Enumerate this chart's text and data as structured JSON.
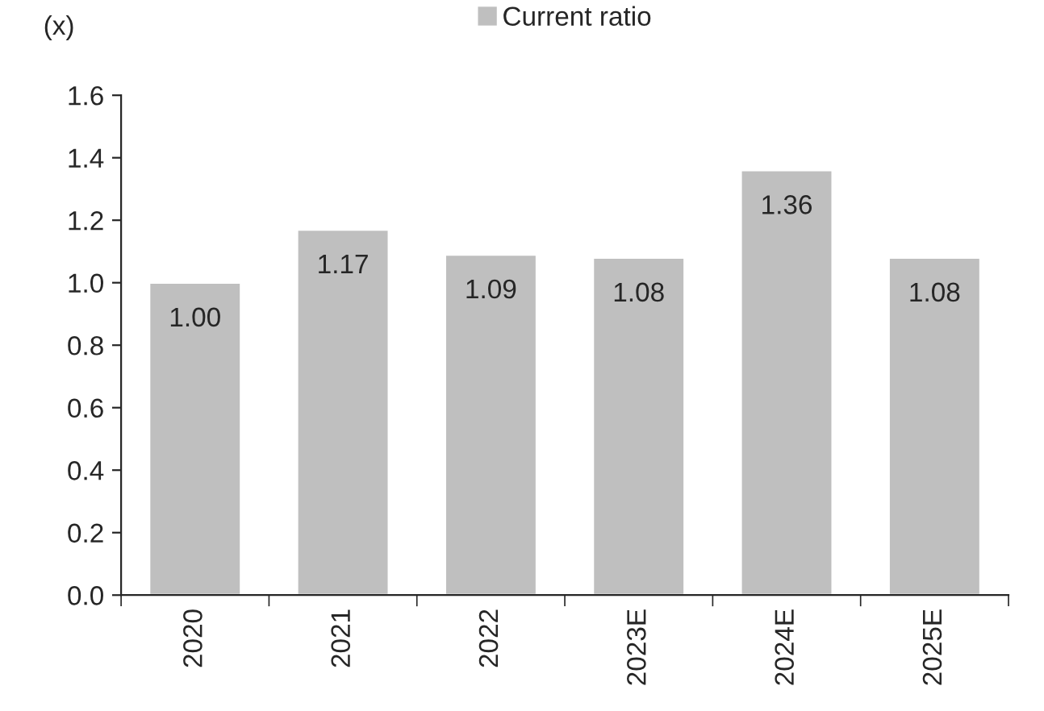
{
  "chart_data": {
    "type": "bar",
    "ylabel": "(x)",
    "categories": [
      "2020",
      "2021",
      "2022",
      "2023E",
      "2024E",
      "2025E"
    ],
    "series": [
      {
        "name": "Current ratio",
        "color": "#bfbfbf",
        "values": [
          1.0,
          1.17,
          1.09,
          1.08,
          1.36,
          1.08
        ],
        "value_labels": [
          "1.00",
          "1.17",
          "1.09",
          "1.08",
          "1.36",
          "1.08"
        ]
      }
    ],
    "ylim": [
      0,
      1.6
    ],
    "yticks": [
      {
        "value": 0,
        "label": "0.0"
      },
      {
        "value": 0.2,
        "label": "0.2"
      },
      {
        "value": 0.4,
        "label": "0.4"
      },
      {
        "value": 0.6,
        "label": "0.6"
      },
      {
        "value": 0.8,
        "label": "0.8"
      },
      {
        "value": 1.0,
        "label": "1.0"
      },
      {
        "value": 1.2,
        "label": "1.2"
      },
      {
        "value": 1.4,
        "label": "1.4"
      },
      {
        "value": 1.6,
        "label": "1.6"
      }
    ],
    "grid": false,
    "legend": "top"
  }
}
